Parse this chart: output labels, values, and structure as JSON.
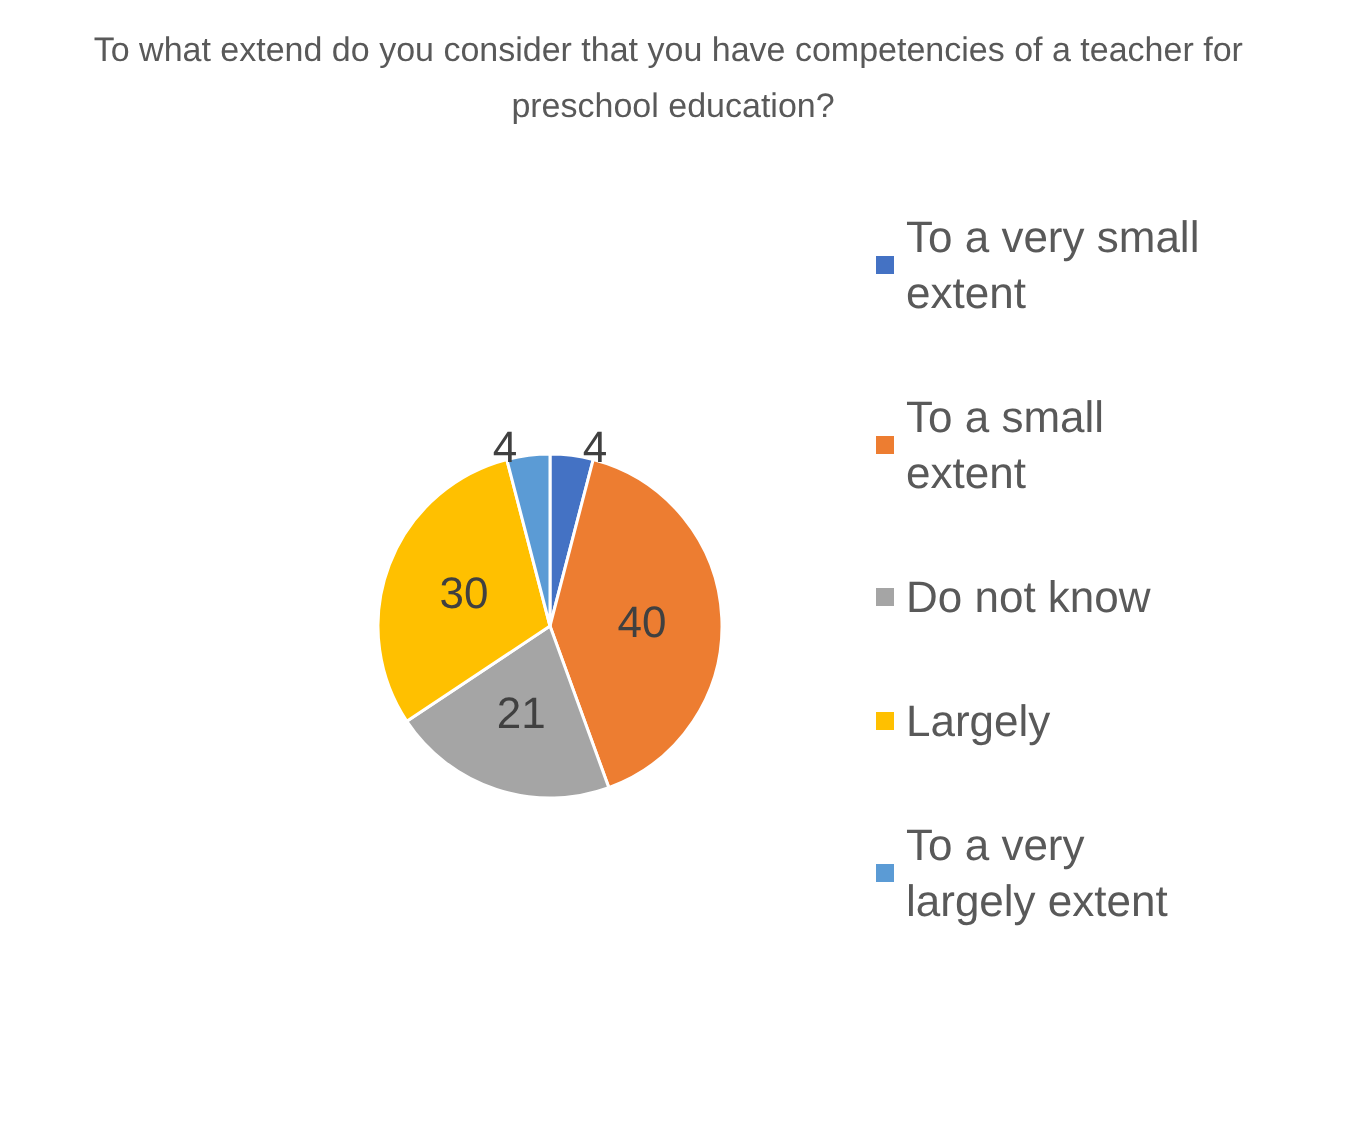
{
  "chart_data": {
    "type": "pie",
    "title": "To what extend do you consider that you have competencies of a teacher for preschool education?",
    "categories": [
      "To a very small extent",
      "To a small extent",
      "Do not know",
      "Largely",
      "To a very largely extent"
    ],
    "values": [
      4,
      40,
      21,
      30,
      4
    ],
    "colors": [
      "#4472c4",
      "#ed7d31",
      "#a5a5a5",
      "#ffc000",
      "#5b9bd5"
    ],
    "data_labels": true,
    "legend": "right"
  }
}
